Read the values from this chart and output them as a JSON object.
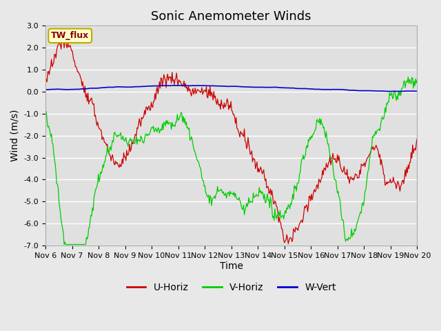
{
  "title": "Sonic Anemometer Winds",
  "xlabel": "Time",
  "ylabel": "Wind (m/s)",
  "ylim": [
    -7.0,
    3.0
  ],
  "yticks": [
    -7.0,
    -6.0,
    -5.0,
    -4.0,
    -3.0,
    -2.0,
    -1.0,
    0.0,
    1.0,
    2.0,
    3.0
  ],
  "x_tick_labels": [
    "Nov 6",
    "Nov 7",
    "Nov 8",
    "Nov 9",
    "Nov 10",
    "Nov 11",
    "Nov 12",
    "Nov 13",
    "Nov 14",
    "Nov 15",
    "Nov 16",
    "Nov 17",
    "Nov 18",
    "Nov 19",
    "Nov 20"
  ],
  "label_box_text": "TW_flux",
  "label_box_facecolor": "#ffffcc",
  "label_box_edgecolor": "#bbaa00",
  "colors": {
    "U": "#cc0000",
    "V": "#00cc00",
    "W": "#0000cc"
  },
  "legend_labels": [
    "U-Horiz",
    "V-Horiz",
    "W-Vert"
  ],
  "background_color": "#e8e8e8",
  "plot_bg_color": "#e0e0e0",
  "grid_color": "#ffffff",
  "title_fontsize": 13,
  "axis_label_fontsize": 10,
  "tick_fontsize": 8,
  "n_days": 14,
  "n_points": 500
}
